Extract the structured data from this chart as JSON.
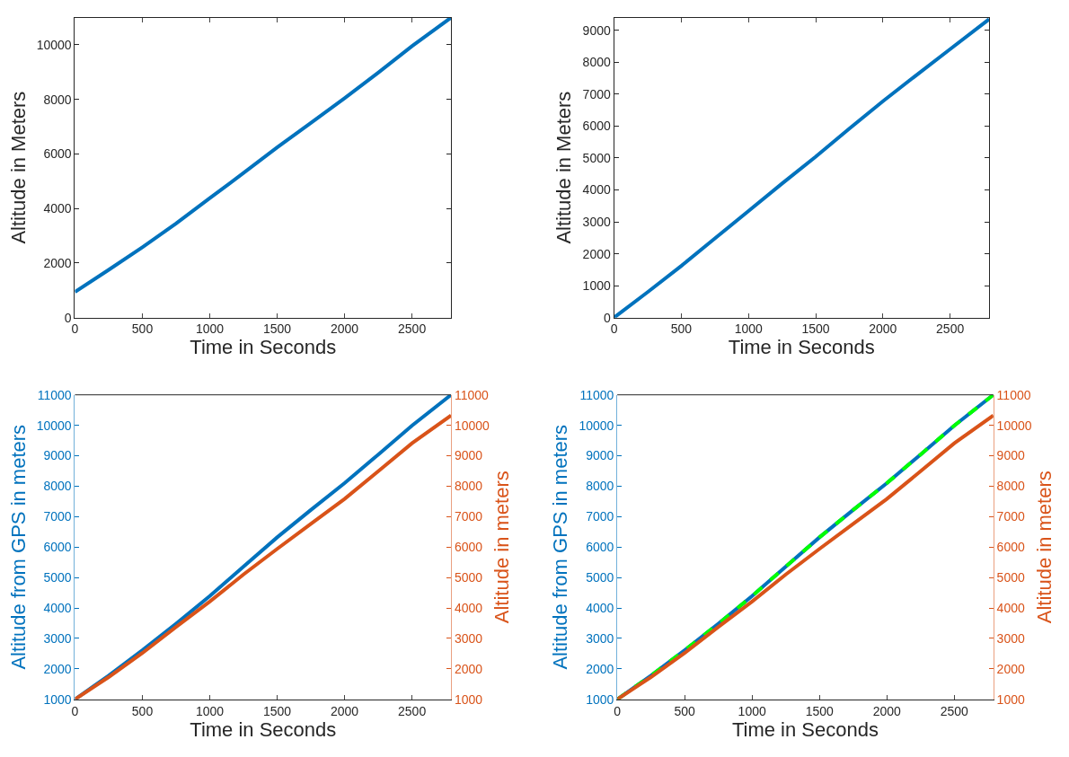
{
  "chart_data": [
    {
      "type": "line",
      "xlabel": "Time in Seconds",
      "ylabel": "Altitude in Meters",
      "xlim": [
        0,
        2790
      ],
      "xticks": [
        0,
        500,
        1000,
        1500,
        2000,
        2500
      ],
      "ylim": [
        0,
        11000
      ],
      "yticks": [
        0,
        2000,
        4000,
        6000,
        8000,
        10000
      ],
      "line_style": "solid",
      "series": [
        {
          "color": "#0072bd",
          "x": [
            0,
            250,
            500,
            750,
            1000,
            1250,
            1500,
            1750,
            2000,
            2250,
            2500,
            2790
          ],
          "values": [
            940,
            1750,
            2580,
            3450,
            4380,
            5300,
            6240,
            7140,
            8040,
            8980,
            9950,
            11000
          ]
        }
      ]
    },
    {
      "type": "line",
      "xlabel": "Time in Seconds",
      "ylabel": "Altitude in Meters",
      "xlim": [
        0,
        2790
      ],
      "xticks": [
        0,
        500,
        1000,
        1500,
        2000,
        2500
      ],
      "ylim": [
        0,
        9400
      ],
      "yticks": [
        0,
        1000,
        2000,
        3000,
        4000,
        5000,
        6000,
        7000,
        8000,
        9000
      ],
      "line_style": "solid",
      "series": [
        {
          "color": "#0072bd",
          "x": [
            0,
            250,
            500,
            750,
            1000,
            1250,
            1500,
            1750,
            2000,
            2250,
            2500,
            2790
          ],
          "values": [
            0,
            800,
            1620,
            2480,
            3340,
            4200,
            5040,
            5920,
            6780,
            7600,
            8410,
            9350
          ]
        }
      ]
    },
    {
      "type": "line",
      "xlabel": "Time in Seconds",
      "ylabel": "Altitude from GPS in meters",
      "y2label": "Altitude in meters",
      "xlim": [
        0,
        2790
      ],
      "xticks": [
        0,
        500,
        1000,
        1500,
        2000,
        2500
      ],
      "ylim": [
        1000,
        11000
      ],
      "yticks": [
        1000,
        2000,
        3000,
        4000,
        5000,
        6000,
        7000,
        8000,
        9000,
        10000,
        11000
      ],
      "y2lim": [
        1000,
        11000
      ],
      "y2ticks": [
        1000,
        2000,
        3000,
        4000,
        5000,
        6000,
        7000,
        8000,
        9000,
        10000,
        11000
      ],
      "line_style": "solid",
      "series": [
        {
          "color": "#0072bd",
          "x": [
            0,
            250,
            500,
            750,
            1000,
            1250,
            1500,
            1750,
            2000,
            2250,
            2500,
            2790
          ],
          "values": [
            1000,
            1780,
            2610,
            3480,
            4390,
            5360,
            6320,
            7220,
            8100,
            9040,
            9990,
            11000
          ]
        },
        {
          "color": "#d95319",
          "axis": "y2",
          "x": [
            0,
            250,
            500,
            750,
            1000,
            1250,
            1500,
            1750,
            2000,
            2250,
            2500,
            2790
          ],
          "values": [
            1000,
            1730,
            2520,
            3380,
            4210,
            5100,
            5940,
            6760,
            7580,
            8490,
            9410,
            10320
          ]
        }
      ]
    },
    {
      "type": "line",
      "xlabel": "Time in Seconds",
      "ylabel": "Altitude from GPS in meters",
      "y2label": "Altitude in meters",
      "xlim": [
        0,
        2790
      ],
      "xticks": [
        0,
        500,
        1000,
        1500,
        2000,
        2500
      ],
      "ylim": [
        1000,
        11000
      ],
      "yticks": [
        1000,
        2000,
        3000,
        4000,
        5000,
        6000,
        7000,
        8000,
        9000,
        10000,
        11000
      ],
      "y2lim": [
        1000,
        11000
      ],
      "y2ticks": [
        1000,
        2000,
        3000,
        4000,
        5000,
        6000,
        7000,
        8000,
        9000,
        10000,
        11000
      ],
      "series": [
        {
          "color": "#0072bd",
          "line_style": "solid",
          "x": [
            0,
            250,
            500,
            750,
            1000,
            1250,
            1500,
            1750,
            2000,
            2250,
            2500,
            2790
          ],
          "values": [
            1000,
            1780,
            2610,
            3480,
            4390,
            5360,
            6320,
            7220,
            8100,
            9040,
            9990,
            11000
          ]
        },
        {
          "color": "#d95319",
          "line_style": "solid",
          "axis": "y2",
          "x": [
            0,
            250,
            500,
            750,
            1000,
            1250,
            1500,
            1750,
            2000,
            2250,
            2500,
            2790
          ],
          "values": [
            1000,
            1730,
            2520,
            3380,
            4210,
            5100,
            5940,
            6760,
            7580,
            8490,
            9410,
            10320
          ]
        },
        {
          "color": "#00ff00",
          "line_style": "dashed",
          "x": [
            0,
            250,
            500,
            750,
            1000,
            1250,
            1500,
            1750,
            2000,
            2250,
            2500,
            2790
          ],
          "values": [
            1000,
            1780,
            2610,
            3480,
            4390,
            5360,
            6320,
            7220,
            8100,
            9040,
            9990,
            11000
          ]
        }
      ]
    }
  ]
}
